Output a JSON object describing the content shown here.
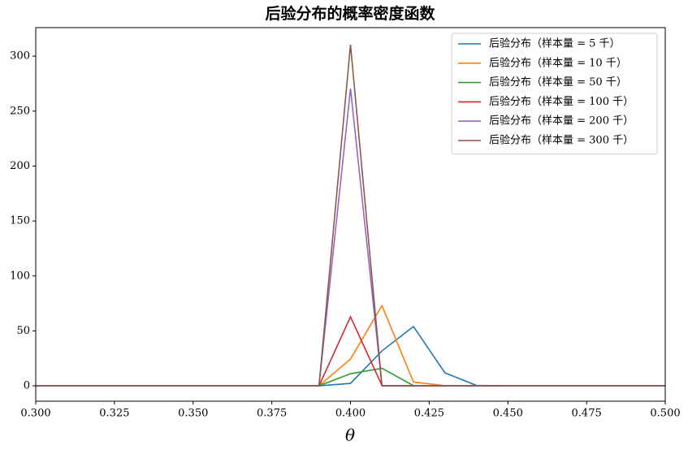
{
  "chart_data": {
    "type": "line",
    "title": "后验分布的概率密度函数",
    "x_label": "θ",
    "x": [
      0.3,
      0.31,
      0.32,
      0.33,
      0.34,
      0.35,
      0.36,
      0.37,
      0.38,
      0.39,
      0.4,
      0.41,
      0.42,
      0.43,
      0.44,
      0.45,
      0.46,
      0.47,
      0.48,
      0.49,
      0.5
    ],
    "series": [
      {
        "name": "后验分布（样本量 = 5 千）",
        "color": "#1f77b4",
        "values": [
          0,
          0,
          0,
          0,
          0,
          0,
          0,
          0,
          0,
          0,
          2.2,
          31.8,
          54,
          11.8,
          0.4,
          0,
          0,
          0,
          0,
          0,
          0
        ]
      },
      {
        "name": "后验分布（样本量 = 10 千）",
        "color": "#ff7f0e",
        "values": [
          0,
          0,
          0,
          0,
          0,
          0,
          0,
          0,
          0,
          0,
          24.4,
          73,
          3.5,
          0.1,
          0,
          0,
          0,
          0,
          0,
          0,
          0
        ]
      },
      {
        "name": "后验分布（样本量 = 50 千）",
        "color": "#2ca02c",
        "values": [
          0,
          0,
          0,
          0,
          0,
          0,
          0,
          0,
          0,
          0,
          11,
          16,
          0.2,
          0,
          0,
          0,
          0,
          0,
          0,
          0,
          0
        ]
      },
      {
        "name": "后验分布（样本量 = 100 千）",
        "color": "#d62728",
        "values": [
          0,
          0,
          0,
          0,
          0,
          0,
          0,
          0,
          0,
          0,
          62.8,
          0.3,
          0,
          0,
          0,
          0,
          0,
          0,
          0,
          0,
          0
        ]
      },
      {
        "name": "后验分布（样本量 = 200 千）",
        "color": "#9467bd",
        "values": [
          0,
          0,
          0,
          0,
          0,
          0,
          0,
          0,
          0,
          0,
          270.5,
          0,
          0,
          0,
          0,
          0,
          0,
          0,
          0,
          0,
          0
        ]
      },
      {
        "name": "后验分布（样本量 = 300 千）",
        "color": "#8c564b",
        "values": [
          0,
          0,
          0,
          0,
          0,
          0,
          0,
          0,
          0,
          0,
          310.4,
          0,
          0,
          0,
          0,
          0,
          0,
          0,
          0,
          0,
          0
        ]
      }
    ],
    "xlim": [
      0.3,
      0.5
    ],
    "xticks": [
      {
        "value": 0.3,
        "label": "0.300"
      },
      {
        "value": 0.325,
        "label": "0.325"
      },
      {
        "value": 0.35,
        "label": "0.350"
      },
      {
        "value": 0.375,
        "label": "0.375"
      },
      {
        "value": 0.4,
        "label": "0.400"
      },
      {
        "value": 0.425,
        "label": "0.425"
      },
      {
        "value": 0.45,
        "label": "0.450"
      },
      {
        "value": 0.475,
        "label": "0.475"
      },
      {
        "value": 0.5,
        "label": "0.500"
      }
    ],
    "ylim": [
      -14,
      326
    ],
    "yticks": [
      0,
      50,
      100,
      150,
      200,
      250,
      300
    ],
    "legend": "upper right"
  }
}
